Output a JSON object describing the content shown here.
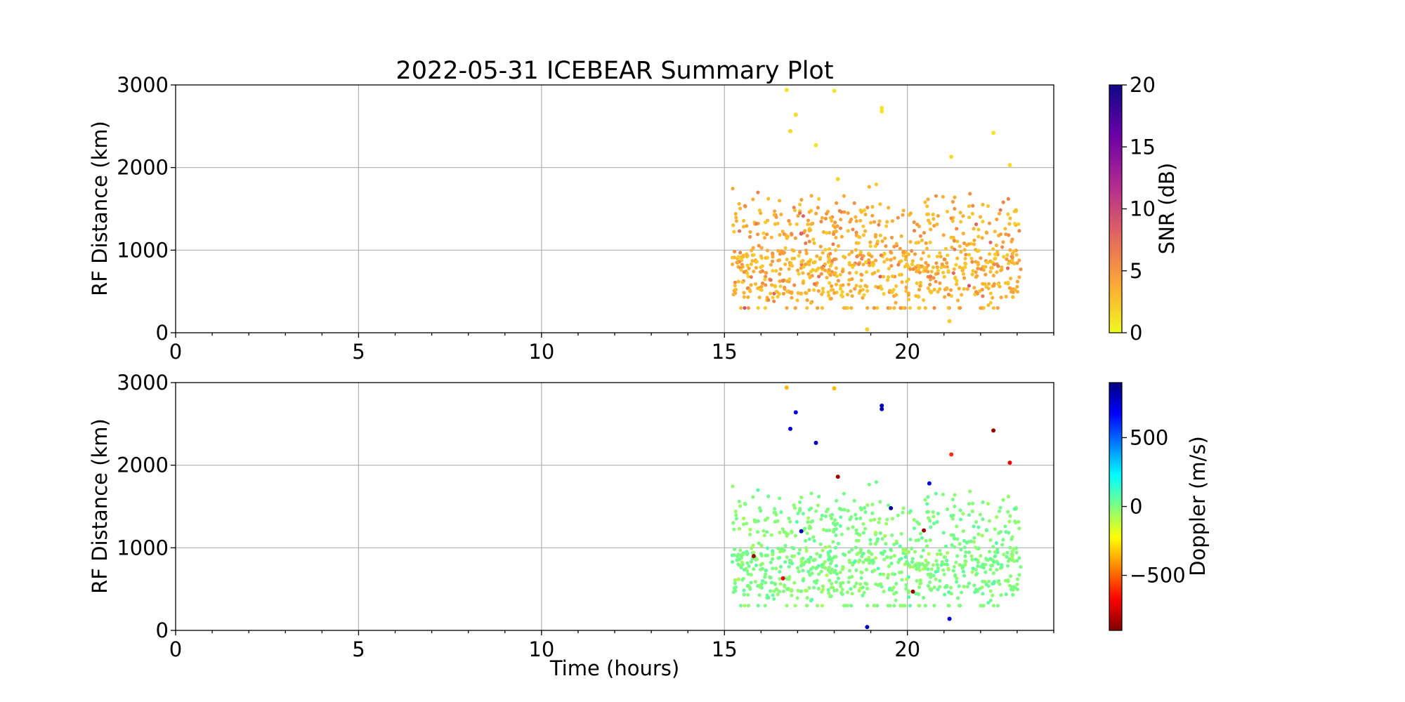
{
  "figure": {
    "title": "2022-05-31 ICEBEAR Summary Plot",
    "xlabel": "Time (hours)"
  },
  "chart_data": [
    {
      "type": "scatter",
      "panel": "top",
      "ylabel": "RF Distance (km)",
      "xlim": [
        0,
        24
      ],
      "ylim": [
        0,
        3000
      ],
      "xticks": [
        0,
        5,
        10,
        15,
        20
      ],
      "yticks": [
        0,
        1000,
        2000,
        3000
      ],
      "grid": true,
      "color_encoding": "SNR (dB)",
      "colorbar": {
        "label": "SNR (dB)",
        "colormap": "plasma_r",
        "range": [
          0,
          20
        ],
        "ticks": [
          0,
          5,
          10,
          15,
          20
        ],
        "stops": [
          "#f0f921",
          "#fca636",
          "#e16462",
          "#b12a90",
          "#6a00a8",
          "#0d0887"
        ]
      },
      "outliers": [
        {
          "x": 16.7,
          "y": 2940,
          "snr": 1.0
        },
        {
          "x": 18.0,
          "y": 2930,
          "snr": 1.0
        },
        {
          "x": 16.95,
          "y": 2640,
          "snr": 1.5
        },
        {
          "x": 16.8,
          "y": 2440,
          "snr": 1.5
        },
        {
          "x": 19.3,
          "y": 2720,
          "snr": 1.0
        },
        {
          "x": 19.3,
          "y": 2680,
          "snr": 1.0
        },
        {
          "x": 17.5,
          "y": 2270,
          "snr": 1.0
        },
        {
          "x": 22.35,
          "y": 2420,
          "snr": 1.0
        },
        {
          "x": 21.2,
          "y": 2130,
          "snr": 1.5
        },
        {
          "x": 22.8,
          "y": 2030,
          "snr": 1.5
        },
        {
          "x": 18.1,
          "y": 1860,
          "snr": 1.5
        },
        {
          "x": 18.9,
          "y": 40,
          "snr": 2.0
        },
        {
          "x": 21.15,
          "y": 140,
          "snr": 2.0
        },
        {
          "x": 16.6,
          "y": 630,
          "snr": 6.0
        },
        {
          "x": 17.1,
          "y": 1200,
          "snr": 8.0
        }
      ],
      "cluster": {
        "x_range": [
          15.2,
          23.1
        ],
        "y_range": [
          300,
          1800
        ],
        "snr_typical": [
          2,
          6
        ],
        "point_count_approx": 900
      }
    },
    {
      "type": "scatter",
      "panel": "bottom",
      "ylabel": "RF Distance (km)",
      "xlim": [
        0,
        24
      ],
      "ylim": [
        0,
        3000
      ],
      "xticks": [
        0,
        5,
        10,
        15,
        20
      ],
      "yticks": [
        0,
        1000,
        2000,
        3000
      ],
      "grid": true,
      "color_encoding": "Doppler (m/s)",
      "colorbar": {
        "label": "Doppler (m/s)",
        "colormap": "jet_r",
        "range": [
          -900,
          900
        ],
        "ticks": [
          -500,
          0,
          500
        ],
        "tick_labels": [
          "−500",
          "0",
          "500"
        ],
        "stops": [
          "#7f0000",
          "#ff0000",
          "#ff8000",
          "#ffff00",
          "#80ff80",
          "#00ffff",
          "#0080ff",
          "#0000ff",
          "#00007f"
        ]
      },
      "outliers": [
        {
          "x": 16.7,
          "y": 2940,
          "doppler": -350
        },
        {
          "x": 18.0,
          "y": 2930,
          "doppler": -350
        },
        {
          "x": 16.95,
          "y": 2640,
          "doppler": 700
        },
        {
          "x": 16.8,
          "y": 2440,
          "doppler": 750
        },
        {
          "x": 19.3,
          "y": 2720,
          "doppler": 800
        },
        {
          "x": 19.3,
          "y": 2680,
          "doppler": 800
        },
        {
          "x": 17.5,
          "y": 2270,
          "doppler": 800
        },
        {
          "x": 22.35,
          "y": 2420,
          "doppler": -850
        },
        {
          "x": 21.2,
          "y": 2130,
          "doppler": -600
        },
        {
          "x": 22.8,
          "y": 2030,
          "doppler": -700
        },
        {
          "x": 18.1,
          "y": 1860,
          "doppler": -850
        },
        {
          "x": 18.9,
          "y": 40,
          "doppler": 800
        },
        {
          "x": 21.15,
          "y": 140,
          "doppler": 750
        },
        {
          "x": 16.6,
          "y": 630,
          "doppler": -700
        },
        {
          "x": 17.1,
          "y": 1200,
          "doppler": 800
        },
        {
          "x": 19.55,
          "y": 1480,
          "doppler": 850
        },
        {
          "x": 20.6,
          "y": 1780,
          "doppler": 750
        },
        {
          "x": 20.45,
          "y": 1210,
          "doppler": -850
        },
        {
          "x": 20.15,
          "y": 470,
          "doppler": -850
        },
        {
          "x": 15.8,
          "y": 900,
          "doppler": -850
        }
      ],
      "cluster": {
        "x_range": [
          15.2,
          23.1
        ],
        "y_range": [
          300,
          1800
        ],
        "doppler_typical": [
          -80,
          80
        ],
        "point_count_approx": 900
      }
    }
  ]
}
